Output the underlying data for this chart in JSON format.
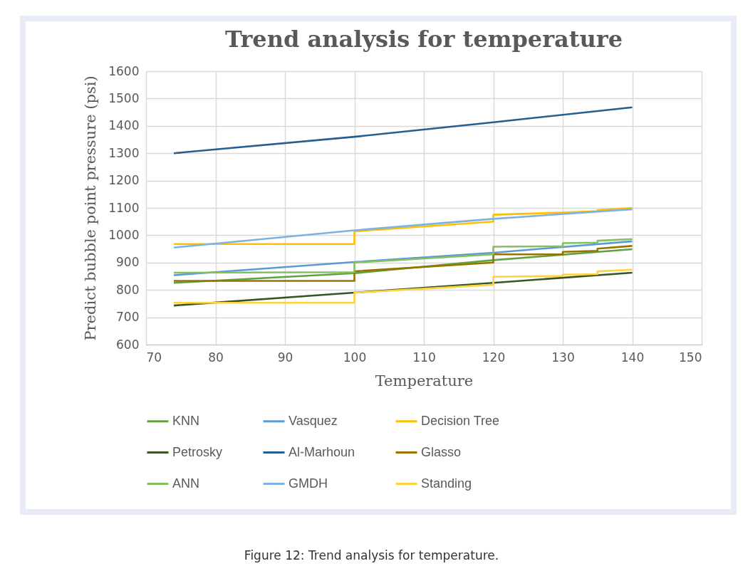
{
  "chart_data": {
    "type": "line",
    "title": "Trend analysis for temperature",
    "xlabel": "Temperature",
    "ylabel": "Predict bubble point pressure (psi)",
    "xlim": [
      70,
      150
    ],
    "xticks": [
      70,
      80,
      90,
      100,
      110,
      120,
      130,
      140,
      150
    ],
    "ylim": [
      600,
      1600
    ],
    "yticks": [
      600,
      700,
      800,
      900,
      1000,
      1100,
      1200,
      1300,
      1400,
      1500,
      1600
    ],
    "grid": true,
    "legend": "bottom",
    "line_style": "solid",
    "series": [
      {
        "name": "KNN",
        "color": "#5fa33e",
        "x": [
          74,
          100,
          120,
          140
        ],
        "values": [
          826,
          861,
          909,
          949
        ]
      },
      {
        "name": "Vasquez",
        "color": "#5b9bd5",
        "x": [
          74,
          100,
          120,
          140
        ],
        "values": [
          854,
          902,
          936,
          978
        ]
      },
      {
        "name": "Decision Tree",
        "color": "#ffc000",
        "x": [
          74,
          100,
          100,
          120,
          120,
          130,
          130,
          135,
          135,
          140
        ],
        "values": [
          968,
          968,
          1014,
          1050,
          1075,
          1083,
          1083,
          1088,
          1092,
          1100
        ]
      },
      {
        "name": "Petrosky",
        "color": "#375623",
        "x": [
          74,
          100,
          120,
          140
        ],
        "values": [
          743,
          790,
          826,
          863
        ]
      },
      {
        "name": "Al-Marhoun",
        "color": "#255e91",
        "x": [
          74,
          100,
          120,
          140
        ],
        "values": [
          1300,
          1360,
          1413,
          1468
        ]
      },
      {
        "name": "Glasso",
        "color": "#997300",
        "x": [
          74,
          100,
          100,
          120,
          120,
          130,
          130,
          135,
          135,
          140
        ],
        "values": [
          833,
          833,
          868,
          900,
          930,
          930,
          939,
          943,
          951,
          961
        ]
      },
      {
        "name": "ANN",
        "color": "#84c060",
        "x": [
          74,
          100,
          100,
          120,
          120,
          130,
          130,
          135,
          135,
          140
        ],
        "values": [
          863,
          865,
          900,
          930,
          958,
          960,
          971,
          973,
          980,
          986
        ]
      },
      {
        "name": "GMDH",
        "color": "#7fb2e0",
        "x": [
          74,
          100,
          120,
          140
        ],
        "values": [
          955,
          1018,
          1060,
          1095
        ]
      },
      {
        "name": "Standing",
        "color": "#ffd23f",
        "x": [
          74,
          100,
          100,
          120,
          120,
          130,
          130,
          135,
          135,
          140
        ],
        "values": [
          753,
          753,
          790,
          819,
          848,
          851,
          856,
          858,
          868,
          874
        ]
      }
    ],
    "annotations": [
      "Figure 12: Trend analysis for temperature."
    ]
  }
}
